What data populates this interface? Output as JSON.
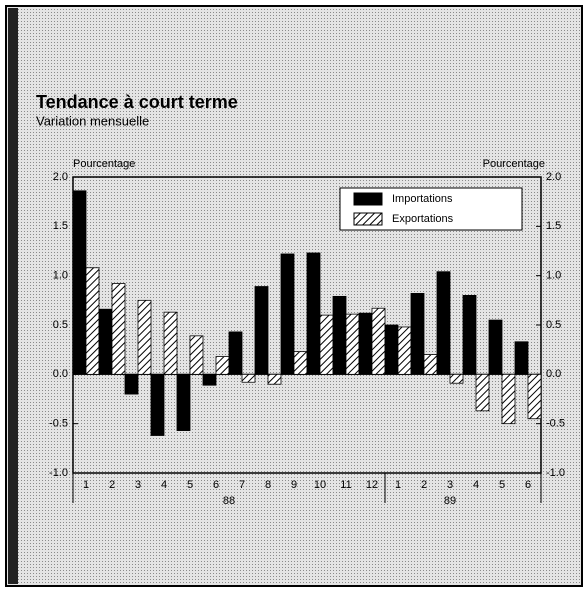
{
  "chart_data": {
    "type": "bar",
    "title": "Tendance à court terme",
    "subtitle": "Variation mensuelle",
    "y_label": "Pourcentage",
    "y2_label": "Pourcentage",
    "categories": [
      "1",
      "2",
      "3",
      "4",
      "5",
      "6",
      "7",
      "8",
      "9",
      "10",
      "11",
      "12",
      "1",
      "2",
      "3",
      "4",
      "5",
      "6"
    ],
    "years": [
      "88",
      "89"
    ],
    "series": [
      {
        "name": "Importations",
        "color": "#000000",
        "values": [
          1.86,
          0.66,
          -0.2,
          -0.62,
          -0.57,
          -0.11,
          0.43,
          0.89,
          1.22,
          1.23,
          0.79,
          0.62,
          0.5,
          0.82,
          1.04,
          0.8,
          0.55,
          0.33
        ]
      },
      {
        "name": "Exportations",
        "color": "hatch",
        "values": [
          1.08,
          0.92,
          0.75,
          0.63,
          0.39,
          0.18,
          -0.08,
          -0.1,
          0.23,
          0.6,
          0.61,
          0.67,
          0.48,
          0.2,
          -0.09,
          -0.37,
          -0.5,
          -0.45
        ]
      }
    ],
    "ylim": [
      -1.0,
      2.0
    ],
    "yticks": [
      {
        "value": 2.0,
        "label": "2.0"
      },
      {
        "value": 1.5,
        "label": "1.5"
      },
      {
        "value": 1.0,
        "label": "1.0"
      },
      {
        "value": 0.5,
        "label": "0.5"
      },
      {
        "value": 0,
        "label": "0.0"
      },
      {
        "value": -0.5,
        "label": "-0.5"
      },
      {
        "value": -1.0,
        "label": "-1.0"
      }
    ],
    "legend": "upper right"
  }
}
